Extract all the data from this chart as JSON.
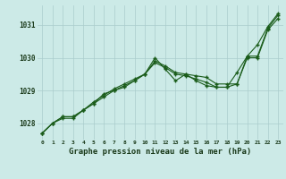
{
  "title": "Graphe pression niveau de la mer (hPa)",
  "bg_color": "#cceae7",
  "line_color": "#1a5c1a",
  "x_labels": [
    "0",
    "1",
    "2",
    "3",
    "4",
    "5",
    "6",
    "7",
    "8",
    "9",
    "10",
    "11",
    "12",
    "13",
    "14",
    "15",
    "16",
    "17",
    "18",
    "19",
    "20",
    "21",
    "22",
    "23"
  ],
  "series1": [
    1027.7,
    1028.0,
    1028.2,
    1028.2,
    1028.4,
    1028.6,
    1028.8,
    1029.0,
    1029.1,
    1029.3,
    1029.5,
    1029.9,
    1029.75,
    1029.55,
    1029.5,
    1029.45,
    1029.4,
    1029.2,
    1029.2,
    1029.2,
    1030.05,
    1030.05,
    1030.9,
    1031.3
  ],
  "series2": [
    1027.7,
    1028.0,
    1028.2,
    1028.2,
    1028.4,
    1028.6,
    1028.9,
    1029.0,
    1029.15,
    1029.3,
    1029.5,
    1029.85,
    1029.7,
    1029.5,
    1029.45,
    1029.35,
    1029.25,
    1029.1,
    1029.1,
    1029.2,
    1030.0,
    1030.0,
    1030.85,
    1031.2
  ],
  "series3": [
    1027.7,
    1028.0,
    1028.15,
    1028.15,
    1028.4,
    1028.65,
    1028.85,
    1029.05,
    1029.2,
    1029.35,
    1029.5,
    1030.0,
    1029.65,
    1029.3,
    1029.5,
    1029.3,
    1029.15,
    1029.1,
    1029.1,
    1029.55,
    1030.05,
    1030.4,
    1030.95,
    1031.35
  ],
  "ylim_min": 1027.5,
  "ylim_max": 1031.6,
  "yticks": [
    1028,
    1029,
    1030,
    1031
  ]
}
